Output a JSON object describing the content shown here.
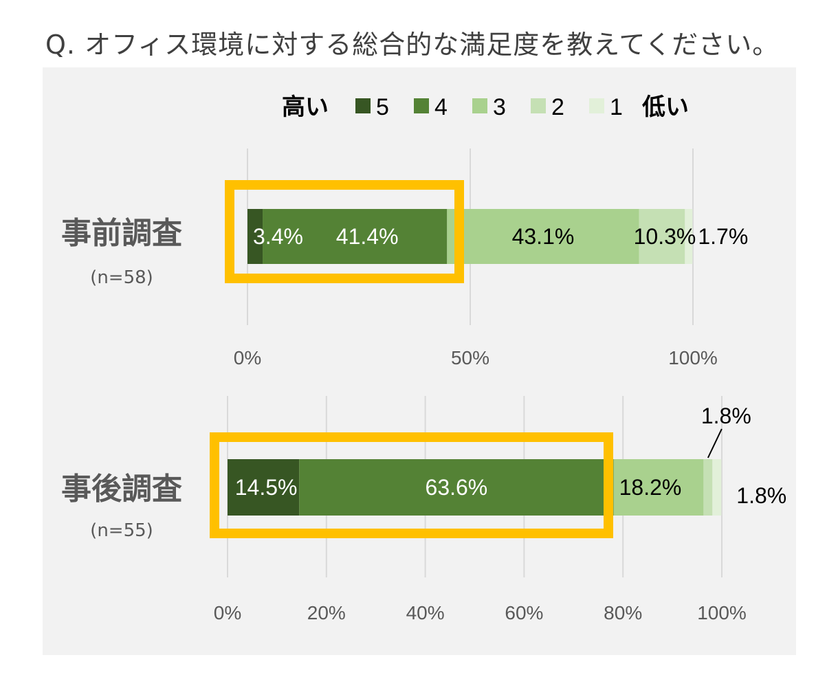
{
  "question": "Q. オフィス環境に対する総合的な満足度を教えてください。",
  "legend": {
    "high": "高い",
    "low": "低い",
    "items": [
      "5",
      "4",
      "3",
      "2",
      "1"
    ]
  },
  "colors": {
    "5": "#375623",
    "4": "#548235",
    "3": "#a9d18e",
    "2": "#c5e0b4",
    "1": "#e2f0d9",
    "highlight": "#ffc000",
    "grid": "#d9d9d9",
    "panel": "#f2f2f2"
  },
  "chart_data": [
    {
      "type": "bar",
      "orientation": "horizontal",
      "stacked": true,
      "category": "事前調査",
      "sample": "(n=58)",
      "series": [
        {
          "name": "5",
          "value": 3.4,
          "label": "3.4%"
        },
        {
          "name": "4",
          "value": 41.4,
          "label": "41.4%"
        },
        {
          "name": "3",
          "value": 43.1,
          "label": "43.1%"
        },
        {
          "name": "2",
          "value": 10.3,
          "label": "10.3%"
        },
        {
          "name": "1",
          "value": 1.7,
          "label": "1.7%"
        }
      ],
      "xlim": [
        0,
        100
      ],
      "ticks": [
        "0%",
        "50%",
        "100%"
      ],
      "highlight_series": [
        "5",
        "4"
      ]
    },
    {
      "type": "bar",
      "orientation": "horizontal",
      "stacked": true,
      "category": "事後調査",
      "sample": "(n=55)",
      "series": [
        {
          "name": "5",
          "value": 14.5,
          "label": "14.5%"
        },
        {
          "name": "4",
          "value": 63.6,
          "label": "63.6%"
        },
        {
          "name": "3",
          "value": 18.2,
          "label": "18.2%"
        },
        {
          "name": "2",
          "value": 1.8,
          "label": "1.8%"
        },
        {
          "name": "1",
          "value": 1.8,
          "label": "1.8%"
        }
      ],
      "xlim": [
        0,
        100
      ],
      "ticks": [
        "0%",
        "20%",
        "40%",
        "60%",
        "80%",
        "100%"
      ],
      "highlight_series": [
        "5",
        "4"
      ]
    }
  ]
}
